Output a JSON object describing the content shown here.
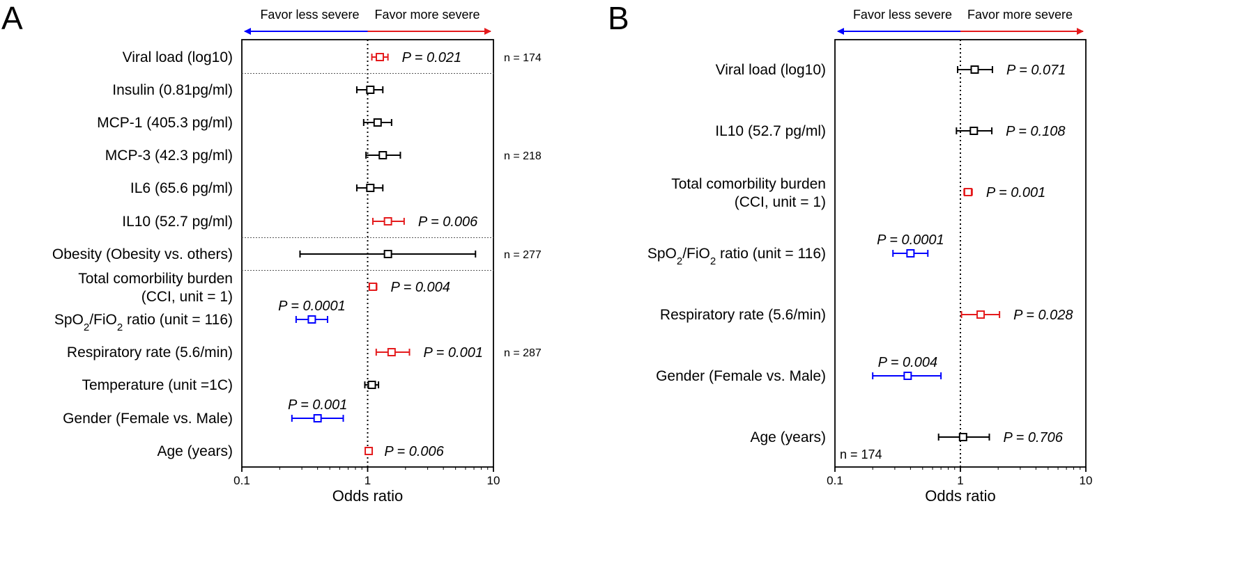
{
  "chart_data": [
    {
      "type": "forest",
      "panel_label": "A",
      "xscale": "log",
      "xlim": [
        0.1,
        10
      ],
      "xticks": [
        {
          "value": 0.1,
          "label": "0.1"
        },
        {
          "value": 1,
          "label": "1"
        },
        {
          "value": 10,
          "label": "10"
        }
      ],
      "xlabel": "Odds ratio",
      "reference_line": 1,
      "direction_left": "Favor less severe",
      "direction_right": "Favor more severe",
      "rows": [
        {
          "label": "Viral load (log10)",
          "or": 1.25,
          "lo": 1.08,
          "hi": 1.45,
          "p": "P = 0.021",
          "color": "#e41a1c"
        },
        {
          "label": "Insulin (0.81pg/ml)",
          "or": 1.05,
          "lo": 0.82,
          "hi": 1.32,
          "p": "",
          "color": "#000000"
        },
        {
          "label": "MCP-1 (405.3 pg/ml)",
          "or": 1.2,
          "lo": 0.93,
          "hi": 1.55,
          "p": "",
          "color": "#000000"
        },
        {
          "label": "MCP-3 (42.3 pg/ml)",
          "or": 1.32,
          "lo": 0.97,
          "hi": 1.82,
          "p": "",
          "color": "#000000"
        },
        {
          "label": "IL6 (65.6 pg/ml)",
          "or": 1.05,
          "lo": 0.82,
          "hi": 1.32,
          "p": "",
          "color": "#000000"
        },
        {
          "label": "IL10 (52.7 pg/ml)",
          "or": 1.45,
          "lo": 1.1,
          "hi": 1.95,
          "p": "P = 0.006",
          "color": "#e41a1c"
        },
        {
          "label": "Obesity (Obesity vs. others)",
          "or": 1.45,
          "lo": 0.29,
          "hi": 7.2,
          "p": "",
          "color": "#000000"
        },
        {
          "label": "Total comorbility burden",
          "label2": "(CCI, unit = 1)",
          "or": 1.1,
          "lo": 1.03,
          "hi": 1.18,
          "p": "P = 0.004",
          "color": "#e41a1c"
        },
        {
          "label": "SpO",
          "label_sub1": "2",
          "label_mid": "/FiO",
          "label_sub2": "2",
          "label_end": " ratio (unit = 116)",
          "or": 0.36,
          "lo": 0.27,
          "hi": 0.48,
          "p": "P = 0.0001",
          "p_position": "above",
          "color": "#0000ff"
        },
        {
          "label": "Respiratory rate (5.6/min)",
          "or": 1.55,
          "lo": 1.17,
          "hi": 2.15,
          "p": "P = 0.001",
          "color": "#e41a1c"
        },
        {
          "label": "Temperature (unit =1C)",
          "or": 1.08,
          "lo": 0.95,
          "hi": 1.22,
          "p": "",
          "color": "#000000"
        },
        {
          "label": "Gender (Female vs. Male)",
          "or": 0.4,
          "lo": 0.25,
          "hi": 0.64,
          "p": "P = 0.001",
          "p_position": "above",
          "color": "#0000ff"
        },
        {
          "label": "Age (years)",
          "or": 1.02,
          "lo": 0.99,
          "hi": 1.05,
          "p": "P = 0.006",
          "color": "#e41a1c"
        }
      ],
      "group_separators_after_row": [
        0,
        5,
        6
      ],
      "n_labels": [
        {
          "text": "n = 174",
          "row": 0
        },
        {
          "text": "n = 218",
          "row": 3
        },
        {
          "text": "n = 277",
          "row": 6
        },
        {
          "text": "n = 287",
          "row": 9
        }
      ]
    },
    {
      "type": "forest",
      "panel_label": "B",
      "xscale": "log",
      "xlim": [
        0.1,
        10
      ],
      "xticks": [
        {
          "value": 0.1,
          "label": "0.1"
        },
        {
          "value": 1,
          "label": "1"
        },
        {
          "value": 10,
          "label": "10"
        }
      ],
      "xlabel": "Odds ratio",
      "reference_line": 1,
      "direction_left": "Favor less severe",
      "direction_right": "Favor more severe",
      "rows": [
        {
          "label": "Viral load (log10)",
          "or": 1.3,
          "lo": 0.95,
          "hi": 1.8,
          "p": "P = 0.071",
          "color": "#000000"
        },
        {
          "label": "IL10 (52.7 pg/ml)",
          "or": 1.28,
          "lo": 0.93,
          "hi": 1.78,
          "p": "P = 0.108",
          "color": "#000000"
        },
        {
          "label": "Total comorbility burden",
          "label2": "(CCI, unit = 1)",
          "or": 1.15,
          "lo": 1.07,
          "hi": 1.24,
          "p": "P = 0.001",
          "color": "#e41a1c"
        },
        {
          "label": "SpO",
          "label_sub1": "2",
          "label_mid": "/FiO",
          "label_sub2": "2",
          "label_end": " ratio (unit = 116)",
          "or": 0.4,
          "lo": 0.29,
          "hi": 0.55,
          "p": "P = 0.0001",
          "p_position": "above",
          "color": "#0000ff"
        },
        {
          "label": "Respiratory rate (5.6/min)",
          "or": 1.45,
          "lo": 1.02,
          "hi": 2.05,
          "p": "P = 0.028",
          "color": "#e41a1c"
        },
        {
          "label": "Gender (Female vs. Male)",
          "or": 0.38,
          "lo": 0.2,
          "hi": 0.7,
          "p": "P = 0.004",
          "p_position": "above",
          "color": "#0000ff"
        },
        {
          "label": "Age (years)",
          "or": 1.05,
          "lo": 0.67,
          "hi": 1.7,
          "p": "P = 0.706",
          "color": "#000000"
        }
      ],
      "group_separators_after_row": [],
      "n_labels": [
        {
          "text": "n = 174",
          "position": "bottom-left-inside"
        }
      ]
    }
  ]
}
